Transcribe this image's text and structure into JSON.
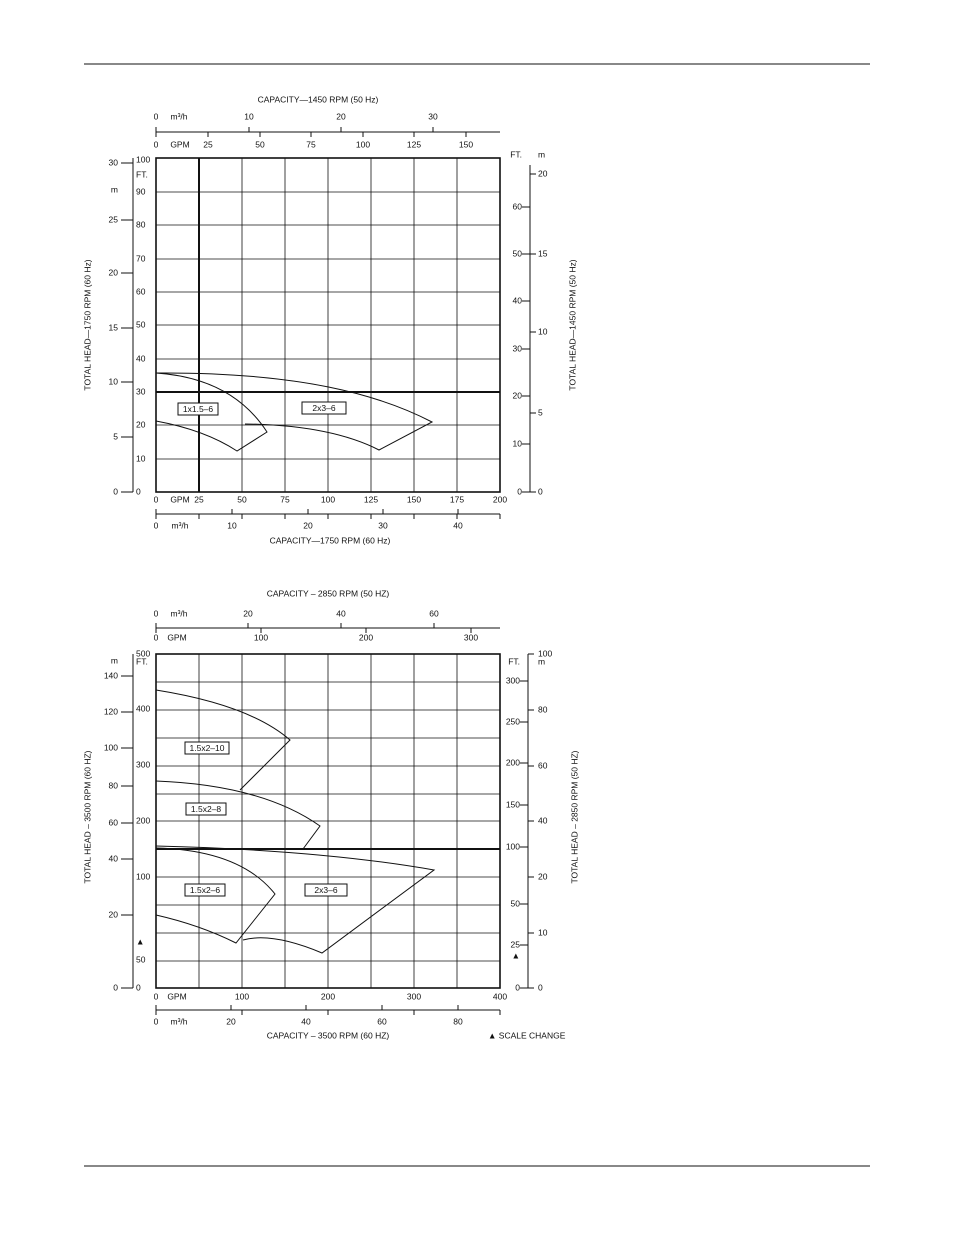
{
  "charts": [
    {
      "title_top": "CAPACITY—1450 RPM (50 Hz)",
      "title_bottom": "CAPACITY—1750 RPM (60 Hz)",
      "y_title_left": "TOTAL HEAD—1750 RPM (60 Hz)",
      "y_title_right": "TOTAL HEAD—1450 RPM (50 Hz)",
      "top_m3h": [
        "0",
        "m³/h",
        "10",
        "20",
        "30"
      ],
      "top_gpm": [
        "0",
        "GPM",
        "25",
        "50",
        "75",
        "100",
        "125",
        "150"
      ],
      "bottom_gpm": [
        "0",
        "GPM",
        "25",
        "50",
        "75",
        "100",
        "125",
        "150",
        "175",
        "200"
      ],
      "bottom_m3h": [
        "0",
        "m³/h",
        "10",
        "20",
        "30",
        "40"
      ],
      "left_m": [
        "30",
        "m",
        "25",
        "20",
        "15",
        "10",
        "5",
        "0"
      ],
      "left_ft": [
        "100",
        "FT.",
        "90",
        "80",
        "70",
        "60",
        "50",
        "40",
        "30",
        "20",
        "10",
        "0"
      ],
      "right_ft": [
        "FT.",
        "60",
        "50",
        "40",
        "30",
        "20",
        "10",
        "0"
      ],
      "right_m": [
        "m",
        "20",
        "15",
        "10",
        "5",
        "0"
      ],
      "models": [
        "1x1.5–6",
        "2x3–6"
      ]
    },
    {
      "title_top": "CAPACITY – 2850 RPM (50 HZ)",
      "title_bottom": "CAPACITY – 3500 RPM (60 HZ)",
      "y_title_left": "TOTAL HEAD – 3500 RPM (60 HZ)",
      "y_title_right": "TOTAL HEAD – 2850 RPM (50 HZ)",
      "top_m3h": [
        "0",
        "m³/h",
        "20",
        "40",
        "60"
      ],
      "top_gpm": [
        "0",
        "GPM",
        "100",
        "200",
        "300"
      ],
      "bottom_gpm": [
        "0",
        "GPM",
        "100",
        "200",
        "300",
        "400"
      ],
      "bottom_m3h": [
        "0",
        "m³/h",
        "20",
        "40",
        "60",
        "80"
      ],
      "left_m": [
        "m",
        "140",
        "120",
        "100",
        "80",
        "60",
        "40",
        "20",
        "0"
      ],
      "left_ft": [
        "500",
        "FT.",
        "400",
        "300",
        "200",
        "100",
        "50",
        "▲",
        "0"
      ],
      "right_ft": [
        "FT.",
        "300",
        "250",
        "200",
        "150",
        "100",
        "50",
        "25",
        "▲",
        "0"
      ],
      "right_m": [
        "100",
        "m",
        "80",
        "60",
        "40",
        "20",
        "10",
        "0"
      ],
      "models": [
        "1.5x2–10",
        "1.5x2–8",
        "1.5x2–6",
        "2x3–6"
      ],
      "note": "▲ SCALE CHANGE"
    }
  ]
}
